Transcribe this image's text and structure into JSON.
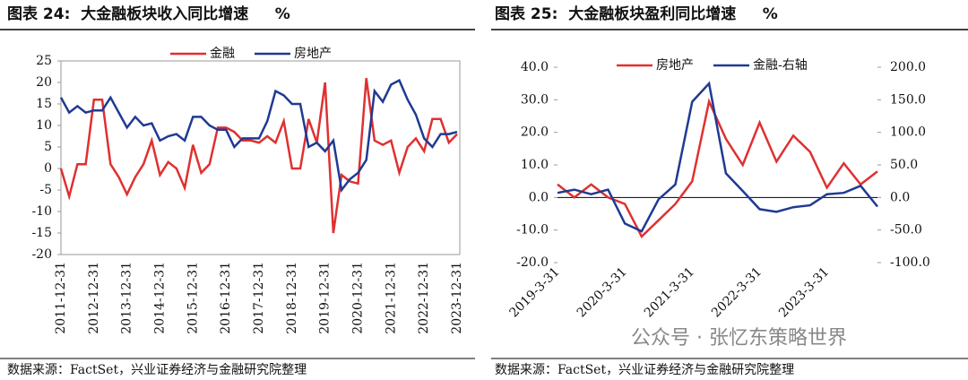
{
  "chart_data": [
    {
      "type": "line",
      "title": "图表 24:  大金融板块收入同比增速     %",
      "source": "数据来源：FactSet，兴业证券经济与金融研究院整理",
      "categories": [
        "2011-12-31",
        null,
        null,
        null,
        "2012-12-31",
        null,
        null,
        null,
        "2013-12-31",
        null,
        null,
        null,
        "2014-12-31",
        null,
        null,
        null,
        "2015-12-31",
        null,
        null,
        null,
        "2016-12-31",
        null,
        null,
        null,
        "2017-12-31",
        null,
        null,
        null,
        "2018-12-31",
        null,
        null,
        null,
        "2019-12-31",
        null,
        null,
        null,
        "2020-12-31",
        null,
        null,
        null,
        "2021-12-31",
        null,
        null,
        null,
        "2022-12-31",
        null,
        null,
        null,
        "2023-12-31"
      ],
      "series": [
        {
          "name": "金融",
          "color": "#e03030",
          "values": [
            0,
            -6.5,
            1,
            1,
            16,
            16,
            1,
            -2,
            -6,
            -2,
            1,
            6.5,
            -1.5,
            1.5,
            0,
            -4.5,
            5.5,
            -1,
            1,
            9.5,
            9.5,
            8.5,
            6.5,
            6.5,
            6,
            7.5,
            6,
            11,
            0,
            0,
            11.5,
            6,
            20,
            -15,
            -1.5,
            -3,
            -3.5,
            21,
            6.5,
            5.5,
            6.5,
            -1,
            5,
            7,
            4,
            11.5,
            11.5,
            6,
            8
          ]
        },
        {
          "name": "房地产",
          "color": "#1f3a93",
          "values": [
            16.5,
            13,
            14.5,
            13,
            13.5,
            13.5,
            16.5,
            13,
            9.5,
            12,
            10,
            10.5,
            6.5,
            7.5,
            8,
            6.5,
            12,
            12,
            10,
            9,
            9,
            5,
            7,
            7,
            7,
            11,
            18,
            17,
            15,
            15,
            5,
            6,
            4,
            6.5,
            -5,
            -2.5,
            -1,
            2,
            18,
            15.5,
            19.5,
            20.5,
            16,
            12.5,
            7,
            5,
            8,
            8,
            8.5
          ]
        }
      ],
      "ylim": [
        -20,
        25
      ],
      "yticks": [
        -20,
        -15,
        -10,
        -5,
        0,
        5,
        10,
        15,
        20,
        25
      ],
      "legend": "top"
    },
    {
      "type": "line",
      "title": "图表 25:  大金融板块盈利同比增速     %",
      "source": "数据来源：FactSet，兴业证券经济与金融研究院整理",
      "categories": [
        "2019-3-31",
        null,
        null,
        null,
        "2020-3-31",
        null,
        null,
        null,
        "2021-3-31",
        null,
        null,
        null,
        "2022-3-31",
        null,
        null,
        null,
        "2023-3-31",
        null,
        null,
        null
      ],
      "series": [
        {
          "name": "房地产",
          "color": "#e03030",
          "values": [
            4,
            0,
            4,
            0,
            -2,
            -12,
            -7,
            -2,
            5,
            29.5,
            18,
            10,
            23,
            11,
            19,
            14,
            3,
            10.5,
            4,
            8
          ]
        },
        {
          "name": "金融-右轴",
          "color": "#1f3a93",
          "axis": "y2",
          "values": [
            7,
            12,
            5,
            12,
            -40,
            -52,
            -3,
            20,
            147,
            175,
            37,
            10,
            -18,
            -22,
            -15,
            -12,
            5,
            7,
            18,
            -14
          ]
        }
      ],
      "ylim": [
        -20,
        40
      ],
      "yticks": [
        {
          "value": -20,
          "label": "-20.0"
        },
        {
          "value": -10,
          "label": "-10.0"
        },
        {
          "value": 0,
          "label": "0.0"
        },
        {
          "value": 10,
          "label": "10.0"
        },
        {
          "value": 20,
          "label": "20.0"
        },
        {
          "value": 30,
          "label": "30.0"
        },
        {
          "value": 40,
          "label": "40.0"
        }
      ],
      "y2lim": [
        -100,
        200
      ],
      "y2ticks": [
        {
          "value": -100,
          "label": "-100.0"
        },
        {
          "value": -50,
          "label": "-50.0"
        },
        {
          "value": 0,
          "label": "0.0"
        },
        {
          "value": 50,
          "label": "50.0"
        },
        {
          "value": 100,
          "label": "100.0"
        },
        {
          "value": 150,
          "label": "150.0"
        },
        {
          "value": 200,
          "label": "200.0"
        }
      ],
      "legend": "top"
    }
  ],
  "watermark": "公众号 · 张忆东策略世界"
}
